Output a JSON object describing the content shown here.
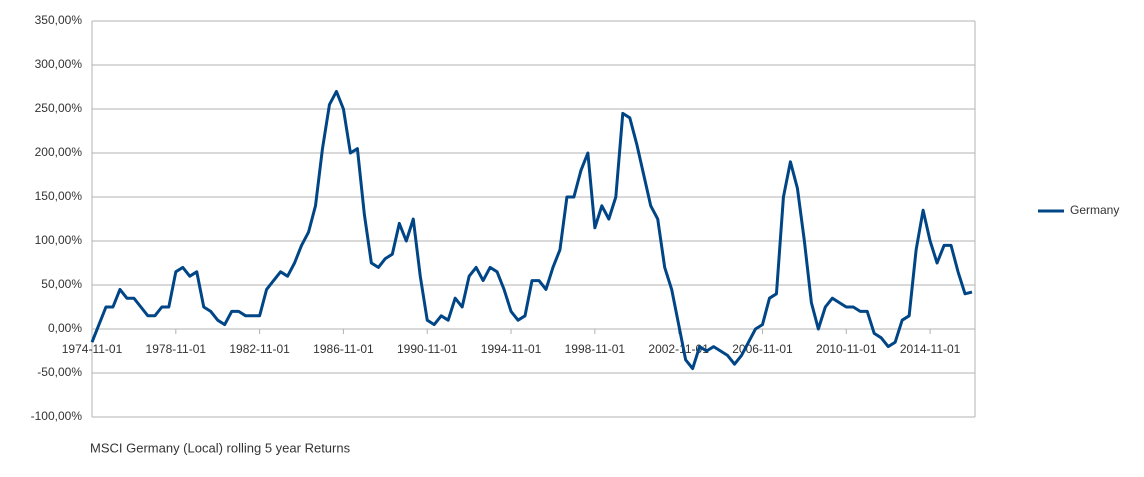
{
  "chart_data": {
    "type": "line",
    "caption": "MSCI Germany (Local) rolling 5 year Returns",
    "categories": [
      "1974-11-01",
      null,
      null,
      null,
      null,
      null,
      null,
      null,
      null,
      null,
      null,
      null,
      "1978-11-01",
      null,
      null,
      null,
      null,
      null,
      null,
      null,
      null,
      null,
      null,
      null,
      "1982-11-01",
      null,
      null,
      null,
      null,
      null,
      null,
      null,
      null,
      null,
      null,
      null,
      "1986-11-01",
      null,
      null,
      null,
      null,
      null,
      null,
      null,
      null,
      null,
      null,
      null,
      "1990-11-01",
      null,
      null,
      null,
      null,
      null,
      null,
      null,
      null,
      null,
      null,
      null,
      "1994-11-01",
      null,
      null,
      null,
      null,
      null,
      null,
      null,
      null,
      null,
      null,
      null,
      "1998-11-01",
      null,
      null,
      null,
      null,
      null,
      null,
      null,
      null,
      null,
      null,
      null,
      "2002-11-01",
      null,
      null,
      null,
      null,
      null,
      null,
      null,
      null,
      null,
      null,
      null,
      "2006-11-01",
      null,
      null,
      null,
      null,
      null,
      null,
      null,
      null,
      null,
      null,
      null,
      "2010-11-01",
      null,
      null,
      null,
      null,
      null,
      null,
      null,
      null,
      null,
      null,
      null,
      "2014-11-01",
      null,
      null,
      null,
      null,
      null,
      null
    ],
    "series": [
      {
        "name": "Germany",
        "color": "#004586",
        "values": [
          -15,
          5,
          25,
          25,
          45,
          35,
          35,
          25,
          15,
          15,
          25,
          25,
          65,
          70,
          60,
          65,
          25,
          20,
          10,
          5,
          20,
          20,
          15,
          15,
          15,
          45,
          55,
          65,
          60,
          75,
          95,
          110,
          140,
          205,
          255,
          270,
          250,
          200,
          205,
          130,
          75,
          70,
          80,
          85,
          120,
          100,
          125,
          60,
          10,
          5,
          15,
          10,
          35,
          25,
          60,
          70,
          55,
          70,
          65,
          45,
          20,
          10,
          15,
          55,
          55,
          45,
          70,
          90,
          150,
          150,
          180,
          200,
          115,
          140,
          125,
          150,
          245,
          240,
          210,
          175,
          140,
          125,
          70,
          45,
          5,
          -35,
          -45,
          -20,
          -25,
          -20,
          -25,
          -30,
          -40,
          -30,
          -15,
          0,
          5,
          35,
          40,
          150,
          190,
          160,
          100,
          30,
          0,
          25,
          35,
          30,
          25,
          25,
          20,
          20,
          -5,
          -10,
          -20,
          -15,
          10,
          15,
          90,
          135,
          100,
          75,
          95,
          95,
          65,
          40,
          42
        ]
      }
    ],
    "ylim": [
      -100,
      350
    ],
    "yticks": [
      {
        "value": -100,
        "label": "-100,00%"
      },
      {
        "value": -50,
        "label": "-50,00%"
      },
      {
        "value": 0,
        "label": "0,00%"
      },
      {
        "value": 50,
        "label": "50,00%"
      },
      {
        "value": 100,
        "label": "100,00%"
      },
      {
        "value": 150,
        "label": "150,00%"
      },
      {
        "value": 200,
        "label": "200,00%"
      },
      {
        "value": 250,
        "label": "250,00%"
      },
      {
        "value": 300,
        "label": "300,00%"
      },
      {
        "value": 350,
        "label": "350,00%"
      }
    ],
    "grid": true,
    "legend": "right"
  }
}
